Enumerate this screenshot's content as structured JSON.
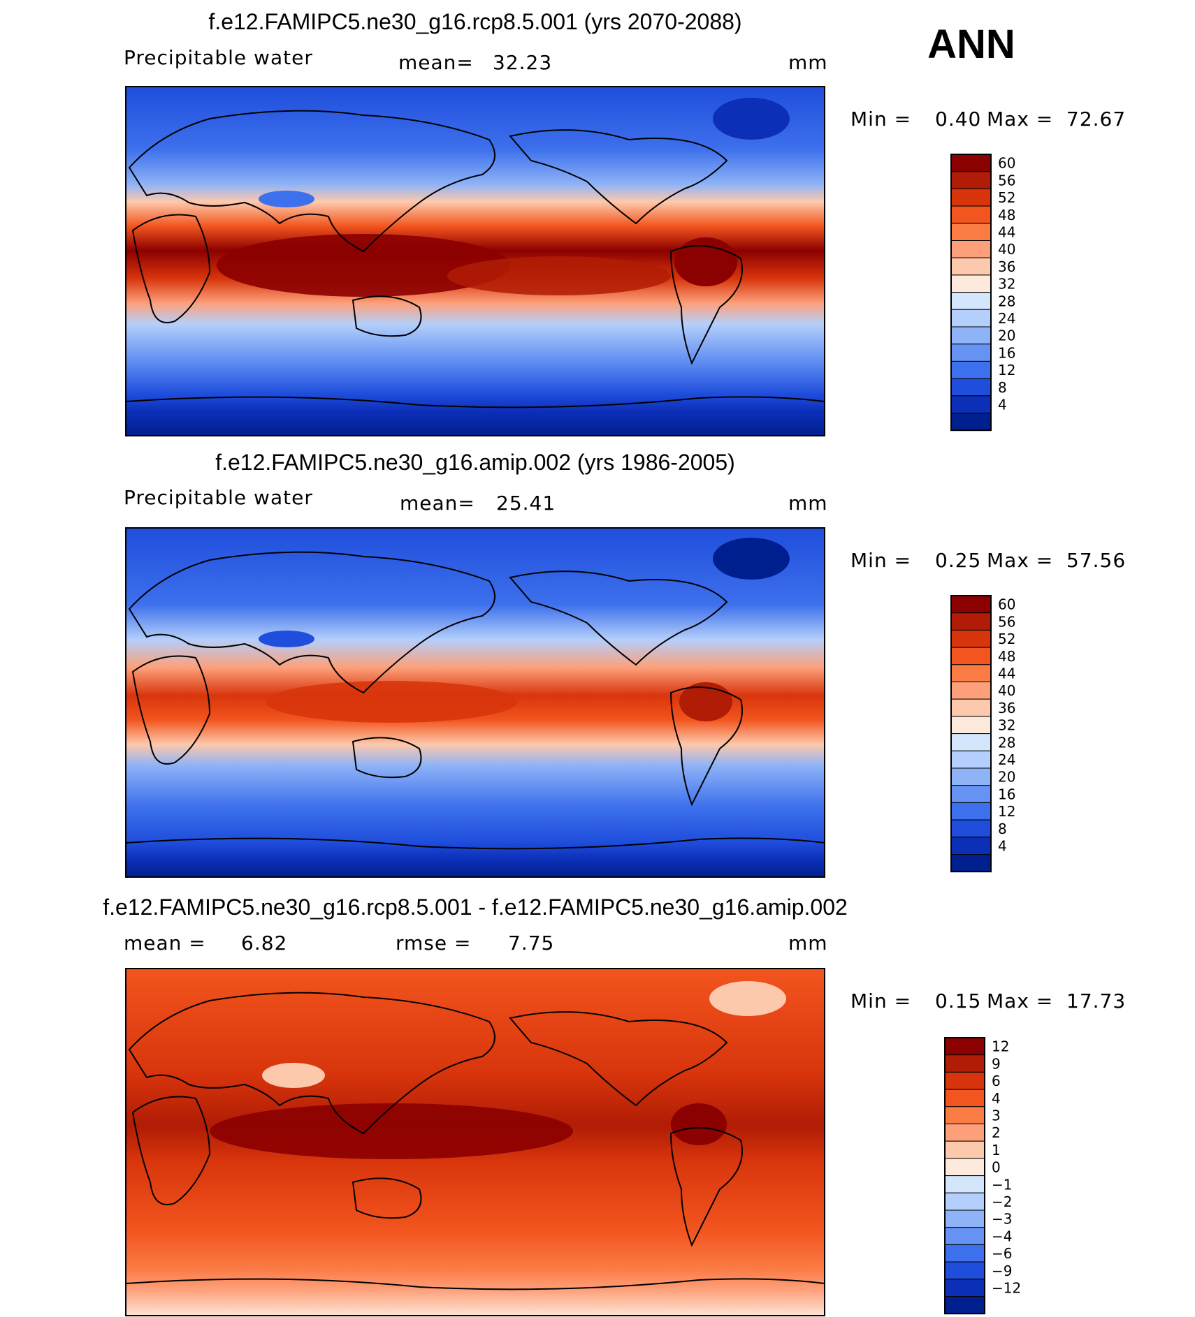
{
  "figure": {
    "season": "ANN"
  },
  "chart_data": [
    {
      "type": "heatmap",
      "title": "f.e12.FAMIPC5.ne30_g16.rcp8.5.001 (yrs 2070-2088)",
      "variable": "Precipitable water",
      "stat_left_label": "mean=",
      "stat_left_value": "32.23",
      "units": "mm",
      "min_label": "Min =",
      "min_value": "0.40",
      "max_label": "Max =",
      "max_value": "72.67",
      "colorbar_levels": [
        "60",
        "56",
        "52",
        "48",
        "44",
        "40",
        "36",
        "32",
        "28",
        "24",
        "20",
        "16",
        "12",
        "8",
        "4"
      ],
      "colorbar_colors": [
        "#8b0000",
        "#b01c05",
        "#d8350c",
        "#f2551e",
        "#fb7b45",
        "#fda07a",
        "#fdc9ac",
        "#fdeadc",
        "#d3e6fb",
        "#b4cffb",
        "#8fb3f7",
        "#6693f3",
        "#3d70ec",
        "#1f4edc",
        "#0c2fb8",
        "#001f8f"
      ],
      "min": 0.4,
      "max": 72.67,
      "mean": 32.23
    },
    {
      "type": "heatmap",
      "title": "f.e12.FAMIPC5.ne30_g16.amip.002 (yrs 1986-2005)",
      "variable": "Precipitable water",
      "stat_left_label": "mean=",
      "stat_left_value": "25.41",
      "units": "mm",
      "min_label": "Min =",
      "min_value": "0.25",
      "max_label": "Max =",
      "max_value": "57.56",
      "colorbar_levels": [
        "60",
        "56",
        "52",
        "48",
        "44",
        "40",
        "36",
        "32",
        "28",
        "24",
        "20",
        "16",
        "12",
        "8",
        "4"
      ],
      "colorbar_colors": [
        "#8b0000",
        "#b01c05",
        "#d8350c",
        "#f2551e",
        "#fb7b45",
        "#fda07a",
        "#fdc9ac",
        "#fdeadc",
        "#d3e6fb",
        "#b4cffb",
        "#8fb3f7",
        "#6693f3",
        "#3d70ec",
        "#1f4edc",
        "#0c2fb8",
        "#001f8f"
      ],
      "min": 0.25,
      "max": 57.56,
      "mean": 25.41
    },
    {
      "type": "heatmap",
      "title": "f.e12.FAMIPC5.ne30_g16.rcp8.5.001 - f.e12.FAMIPC5.ne30_g16.amip.002",
      "stat_left_label": "mean =",
      "stat_left_value": "6.82",
      "stat_mid_label": "rmse =",
      "stat_mid_value": "7.75",
      "units": "mm",
      "min_label": "Min =",
      "min_value": "0.15",
      "max_label": "Max =",
      "max_value": "17.73",
      "colorbar_levels": [
        "12",
        "9",
        "6",
        "4",
        "3",
        "2",
        "1",
        "0",
        "−1",
        "−2",
        "−3",
        "−4",
        "−6",
        "−9",
        "−12"
      ],
      "colorbar_colors": [
        "#8b0000",
        "#b01c05",
        "#d8350c",
        "#f2551e",
        "#fb7b45",
        "#fda07a",
        "#fdc9ac",
        "#fdeadc",
        "#d3e6fb",
        "#b4cffb",
        "#8fb3f7",
        "#6693f3",
        "#3d70ec",
        "#1f4edc",
        "#0c2fb8",
        "#001f8f"
      ],
      "min": 0.15,
      "max": 17.73,
      "mean": 6.82,
      "rmse": 7.75
    }
  ]
}
